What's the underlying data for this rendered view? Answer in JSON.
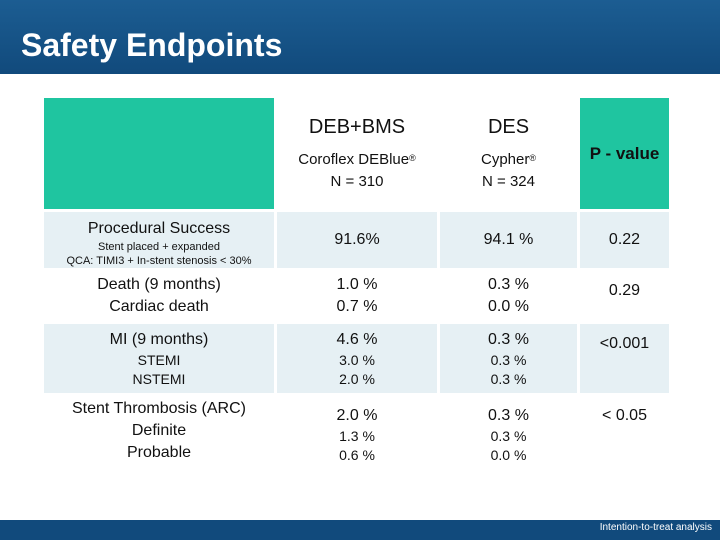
{
  "slide": {
    "title": "Safety Endpoints",
    "footnote": "Intention-to-treat analysis"
  },
  "table": {
    "columns": [
      {
        "name": "DEB+BMS",
        "device": "Coroflex DEBlue",
        "reg": "®",
        "n": "N = 310"
      },
      {
        "name": "DES",
        "device": "Cypher",
        "reg": "®",
        "n": "N = 324"
      }
    ],
    "pvalue_header": "P - value",
    "rows": {
      "procedural_success": {
        "label": "Procedural Success",
        "sub1": "Stent placed + expanded",
        "sub2": "QCA: TIMI3 + In-stent stenosis < 30%",
        "deb": "91.6%",
        "des": "94.1 %",
        "p": "0.22"
      },
      "death": {
        "label": "Death (9 months)",
        "sub": "Cardiac death",
        "deb": "1.0 %",
        "deb_sub": "0.7 %",
        "des": "0.3 %",
        "des_sub": "0.0 %",
        "p": "0.29"
      },
      "mi": {
        "label": "MI (9 months)",
        "sub1": "STEMI",
        "sub2": "NSTEMI",
        "deb": "4.6 %",
        "deb_sub1": "3.0 %",
        "deb_sub2": "2.0 %",
        "des": "0.3 %",
        "des_sub1": "0.3 %",
        "des_sub2": "0.3 %",
        "p": "<0.001"
      },
      "stent_thrombosis": {
        "label": "Stent Thrombosis (ARC)",
        "sub1": "Definite",
        "sub2": "Probable",
        "deb": "2.0 %",
        "deb_sub1": "1.3 %",
        "deb_sub2": "0.6 %",
        "des": "0.3 %",
        "des_sub1": "0.3 %",
        "des_sub2": "0.0 %",
        "p": "< 0.05"
      }
    }
  },
  "colors": {
    "title_bar": "#114a7c",
    "header_teal": "#1fc5a0",
    "row_light": "#e6f0f4"
  }
}
